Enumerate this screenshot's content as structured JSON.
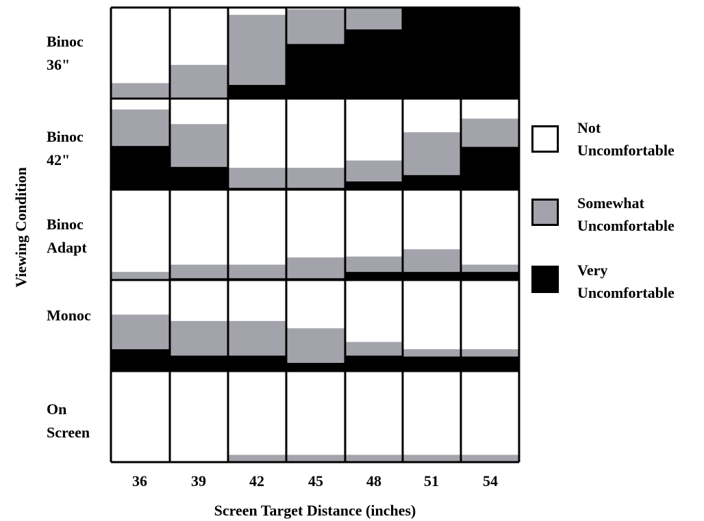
{
  "chart_data": {
    "type": "stacked-bar",
    "xlabel": "Screen Target Distance (inches)",
    "ylabel": "Viewing Condition",
    "categories": [
      "36",
      "39",
      "42",
      "45",
      "48",
      "51",
      "54"
    ],
    "rows": [
      {
        "label_line1": "Binoc",
        "label_line2": "36\"",
        "not": [
          0.83,
          0.63,
          0.08,
          0.02,
          0.0,
          0.0,
          0.0
        ],
        "somewhat": [
          0.16,
          0.36,
          0.77,
          0.38,
          0.24,
          0.0,
          0.0
        ],
        "very": [
          0.01,
          0.01,
          0.15,
          0.6,
          0.76,
          1.0,
          1.0
        ]
      },
      {
        "label_line1": "Binoc",
        "label_line2": "42\"",
        "not": [
          0.12,
          0.28,
          0.76,
          0.76,
          0.68,
          0.37,
          0.22
        ],
        "somewhat": [
          0.4,
          0.47,
          0.22,
          0.22,
          0.23,
          0.47,
          0.31
        ],
        "very": [
          0.48,
          0.25,
          0.02,
          0.02,
          0.09,
          0.16,
          0.47
        ]
      },
      {
        "label_line1": "Binoc",
        "label_line2": "Adapt",
        "not": [
          0.91,
          0.83,
          0.83,
          0.75,
          0.74,
          0.66,
          0.83
        ],
        "somewhat": [
          0.08,
          0.15,
          0.15,
          0.23,
          0.17,
          0.25,
          0.08
        ],
        "very": [
          0.01,
          0.02,
          0.02,
          0.02,
          0.09,
          0.09,
          0.09
        ]
      },
      {
        "label_line1": "Monoc",
        "label_line2": "",
        "not": [
          0.38,
          0.45,
          0.45,
          0.53,
          0.68,
          0.76,
          0.76
        ],
        "somewhat": [
          0.38,
          0.38,
          0.38,
          0.38,
          0.15,
          0.08,
          0.08
        ],
        "very": [
          0.24,
          0.17,
          0.17,
          0.09,
          0.17,
          0.16,
          0.16
        ]
      },
      {
        "label_line1": "On",
        "label_line2": "Screen",
        "not": [
          1.0,
          1.0,
          0.92,
          0.92,
          0.92,
          0.92,
          0.92
        ],
        "somewhat": [
          0.0,
          0.0,
          0.08,
          0.08,
          0.08,
          0.08,
          0.08
        ],
        "very": [
          0.0,
          0.0,
          0.0,
          0.0,
          0.0,
          0.0,
          0.0
        ]
      }
    ],
    "legend": [
      {
        "line1": "Not",
        "line2": "Uncomfortable",
        "color": "#ffffff"
      },
      {
        "line1": "Somewhat",
        "line2": "Uncomfortable",
        "color": "#a3a3ab"
      },
      {
        "line1": "Very",
        "line2": "Uncomfortable",
        "color": "#000000"
      }
    ],
    "legend_placement": "right",
    "grid": false
  }
}
